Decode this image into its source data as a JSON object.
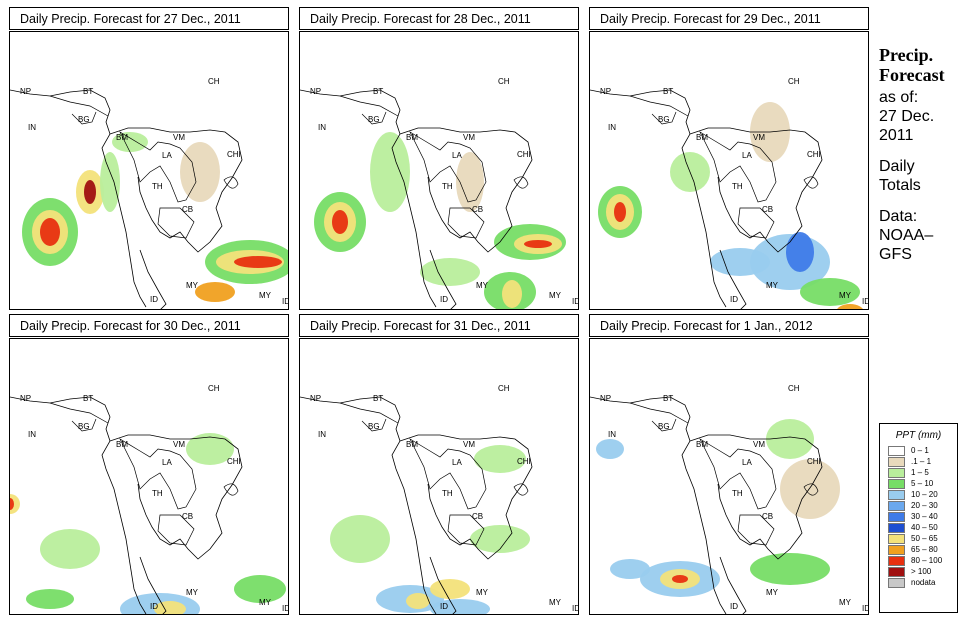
{
  "panels": [
    {
      "title": "Daily Precip. Forecast for  27 Dec., 2011"
    },
    {
      "title": "Daily Precip. Forecast for  28 Dec., 2011"
    },
    {
      "title": "Daily Precip. Forecast for  29 Dec., 2011"
    },
    {
      "title": "Daily Precip. Forecast for  30 Dec., 2011"
    },
    {
      "title": "Daily Precip. Forecast for  31 Dec., 2011"
    },
    {
      "title": "Daily Precip. Forecast for  1 Jan., 2012"
    }
  ],
  "country_labels": [
    "NP",
    "BT",
    "BG",
    "IN",
    "CH",
    "BM",
    "VM",
    "LA",
    "CHI",
    "TH",
    "CB",
    "MY",
    "ID",
    "MY",
    "ID"
  ],
  "sidebar": {
    "title_line1": "Precip.",
    "title_line2": "Forecast",
    "asof_line1": "as of:",
    "asof_line2": "27 Dec.",
    "asof_line3": "2011",
    "daily_line1": "Daily",
    "daily_line2": "Totals",
    "data_line1": "Data:",
    "data_line2": "NOAA–",
    "data_line3": "GFS"
  },
  "legend": {
    "title": "PPT (mm)",
    "items": [
      {
        "label": "0 – 1",
        "color": "#ffffff"
      },
      {
        "label": ".1 – 1",
        "color": "#e8d9bc"
      },
      {
        "label": "1 – 5",
        "color": "#b9ee9c"
      },
      {
        "label": "5 – 10",
        "color": "#77dd66"
      },
      {
        "label": "10 – 20",
        "color": "#99ccee"
      },
      {
        "label": "20 – 30",
        "color": "#6ba8ee"
      },
      {
        "label": "30 – 40",
        "color": "#3f7be8"
      },
      {
        "label": "40 – 50",
        "color": "#1e4fd1"
      },
      {
        "label": "50 – 65",
        "color": "#f3e17a"
      },
      {
        "label": "65 – 80",
        "color": "#f0a020"
      },
      {
        "label": "80 – 100",
        "color": "#e83010"
      },
      {
        "label": "> 100",
        "color": "#a01010"
      },
      {
        "label": "nodata",
        "color": "#c8c8c8"
      }
    ]
  }
}
